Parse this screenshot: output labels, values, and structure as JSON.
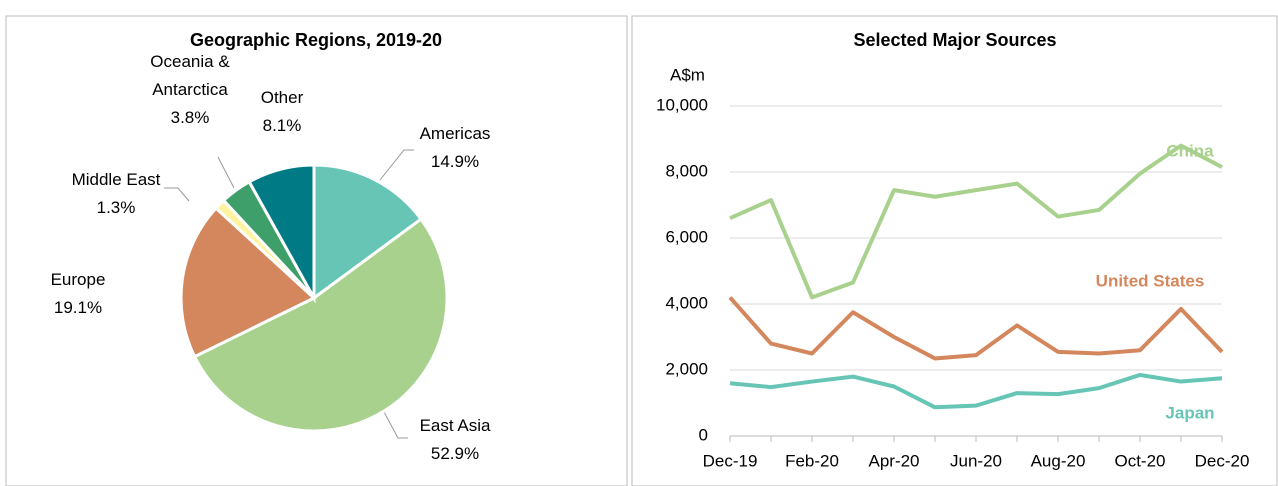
{
  "chart_data": [
    {
      "type": "pie",
      "title": "Geographic Regions, 2019-20",
      "categories": [
        "Americas",
        "East Asia",
        "Europe",
        "Middle East",
        "Oceania & Antarctica",
        "Other"
      ],
      "values": [
        14.9,
        52.9,
        19.1,
        1.3,
        3.8,
        8.1
      ],
      "value_labels": [
        "14.9%",
        "52.9%",
        "19.1%",
        "1.3%",
        "3.8%",
        "8.1%"
      ],
      "colors": [
        "#66c5b5",
        "#a9d18e",
        "#d4875d",
        "#fff3a0",
        "#3f9f6a",
        "#007a85"
      ]
    },
    {
      "type": "line",
      "title": "Selected Major Sources",
      "ylabel": "A$m",
      "categories": [
        "Dec-19",
        null,
        "Feb-20",
        null,
        "Apr-20",
        null,
        "Jun-20",
        null,
        "Aug-20",
        null,
        "Oct-20",
        null,
        "Dec-20"
      ],
      "ylim": [
        0,
        10000
      ],
      "yticks": [
        {
          "value": 0,
          "label": "0"
        },
        {
          "value": 2000,
          "label": "2,000"
        },
        {
          "value": 4000,
          "label": "4,000"
        },
        {
          "value": 6000,
          "label": "6,000"
        },
        {
          "value": 8000,
          "label": "8,000"
        },
        {
          "value": 10000,
          "label": "10,000"
        }
      ],
      "grid": true,
      "series": [
        {
          "name": "China",
          "color": "#a9d18e",
          "values": [
            6600,
            7150,
            4200,
            4650,
            7450,
            7250,
            7450,
            7650,
            6650,
            6850,
            7950,
            8800,
            8150
          ]
        },
        {
          "name": "United States",
          "color": "#d4875d",
          "values": [
            4200,
            2800,
            2500,
            3750,
            3000,
            2350,
            2450,
            3350,
            2550,
            2500,
            2600,
            3850,
            2550
          ]
        },
        {
          "name": "Japan",
          "color": "#66c5b5",
          "values": [
            1600,
            1480,
            1650,
            1800,
            1500,
            870,
            920,
            1300,
            1270,
            1450,
            1850,
            1650,
            1750
          ]
        }
      ]
    }
  ]
}
